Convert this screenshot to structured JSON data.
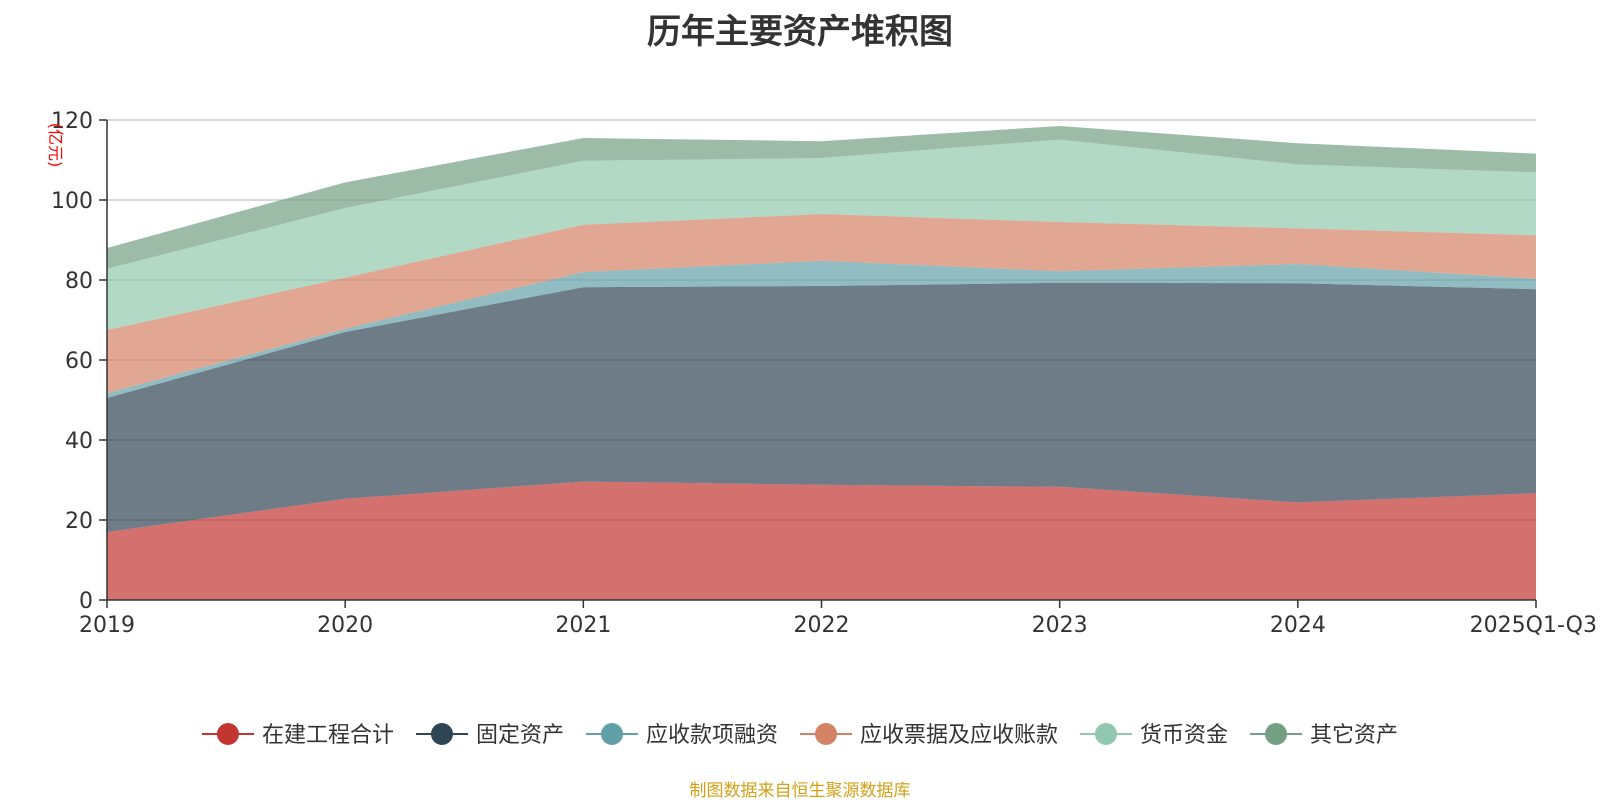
{
  "chart_data": {
    "type": "area",
    "stacked": true,
    "title": "历年主要资产堆积图",
    "ylabel": "(亿元)",
    "xlabel": "",
    "x": [
      "2019",
      "2020",
      "2021",
      "2022",
      "2023",
      "2024",
      "2025Q1-Q3"
    ],
    "ylim": [
      0,
      120
    ],
    "yticks": [
      0,
      20,
      40,
      60,
      80,
      100,
      120
    ],
    "grid": true,
    "legend_position": "bottom",
    "series": [
      {
        "name": "在建工程合计",
        "color": "#c23531",
        "values": [
          17.0,
          25.3,
          29.6,
          28.8,
          28.3,
          24.4,
          26.7
        ]
      },
      {
        "name": "固定资产",
        "color": "#2f4554",
        "values": [
          33.5,
          41.7,
          48.6,
          49.7,
          51.0,
          54.8,
          51.0
        ]
      },
      {
        "name": "应收款项融资",
        "color": "#61a0a8",
        "values": [
          1.2,
          0.8,
          3.8,
          6.3,
          2.9,
          4.8,
          2.6
        ]
      },
      {
        "name": "应收票据及应收账款",
        "color": "#d48265",
        "values": [
          15.8,
          12.8,
          11.8,
          11.7,
          12.3,
          8.9,
          10.9
        ]
      },
      {
        "name": "货币资金",
        "color": "#91c7ae",
        "values": [
          15.3,
          17.4,
          16.0,
          14.0,
          20.6,
          16.0,
          15.7
        ]
      },
      {
        "name": "其它资产",
        "color": "#749f83",
        "values": [
          5.2,
          6.4,
          5.7,
          4.2,
          3.4,
          5.3,
          4.7
        ]
      }
    ]
  },
  "source_note": "制图数据来自恒生聚源数据库",
  "colors": {
    "unit_label": "#ff0000",
    "source_note": "#d4a017",
    "axis": "#333333",
    "grid": "#cccccc"
  }
}
